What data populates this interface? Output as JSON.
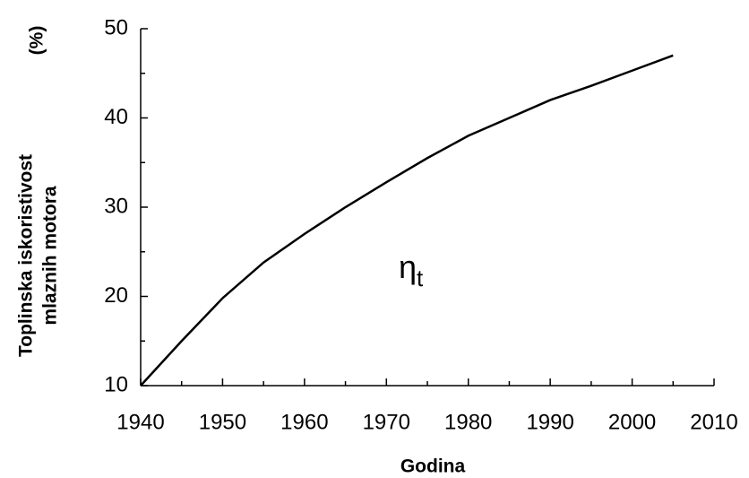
{
  "chart_data": {
    "type": "line",
    "xlabel": "Godina",
    "ylabel": [
      "Toplinska iskoristivost",
      "mlaznih motora"
    ],
    "yunit": "(%)",
    "annotation": "η",
    "annotation_subscript": "t",
    "x": [
      1940,
      1945,
      1950,
      1955,
      1960,
      1965,
      1970,
      1975,
      1980,
      1985,
      1990,
      1995,
      2000,
      2005
    ],
    "values": [
      10,
      15,
      19.8,
      23.8,
      27,
      30,
      32.8,
      35.5,
      38,
      40,
      42,
      43.6,
      45.3,
      47
    ],
    "color": "#000000",
    "xlim": [
      1940,
      2010
    ],
    "xticks": [
      1940,
      1950,
      1960,
      1970,
      1980,
      1990,
      2000,
      2010
    ],
    "x_minor_ticks": [
      1945,
      1955,
      1965,
      1975,
      1985,
      1995,
      2005
    ],
    "ylim": [
      10,
      50
    ],
    "yticks": [
      10,
      20,
      30,
      40,
      50
    ],
    "y_minor_ticks": [
      15,
      25,
      35,
      45
    ],
    "grid": false
  }
}
